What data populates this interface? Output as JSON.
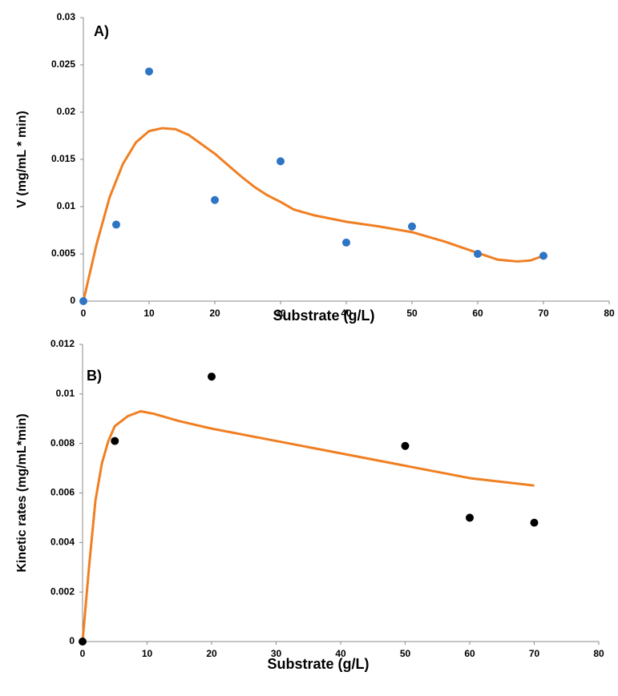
{
  "chart_data": [
    {
      "type": "scatter",
      "title": "A)",
      "x_label": "Substrate (g/L)",
      "y_label": "V (mg/mL * min)",
      "xlim": [
        0,
        80
      ],
      "xticks": [
        0,
        10,
        20,
        30,
        40,
        50,
        60,
        70,
        80
      ],
      "ylim": [
        0,
        0.03
      ],
      "yticks": [
        0,
        0.005,
        0.01,
        0.015,
        0.02,
        0.025,
        0.03
      ],
      "series": [
        {
          "type": "scatter",
          "color": "#2e75c6",
          "x": [
            0,
            5,
            10,
            20,
            30,
            40,
            50,
            60,
            70
          ],
          "values": [
            0,
            0.0081,
            0.0243,
            0.0107,
            0.0148,
            0.0062,
            0.0079,
            0.005,
            0.0048
          ]
        },
        {
          "type": "line",
          "color": "#f07f22",
          "x": [
            0,
            2,
            4,
            6,
            8,
            10,
            12,
            14,
            16,
            18,
            20,
            22,
            24,
            26,
            28,
            30,
            32,
            35,
            40,
            45,
            50,
            55,
            60,
            63,
            66,
            68,
            70
          ],
          "values": [
            0,
            0.006,
            0.011,
            0.0145,
            0.0168,
            0.018,
            0.0183,
            0.0182,
            0.0176,
            0.0166,
            0.0156,
            0.0144,
            0.0132,
            0.0121,
            0.0112,
            0.0105,
            0.0097,
            0.0091,
            0.0084,
            0.0079,
            0.0073,
            0.0063,
            0.0051,
            0.0044,
            0.0042,
            0.0043,
            0.0048
          ]
        }
      ]
    },
    {
      "type": "scatter",
      "title": "B)",
      "x_label": "Substrate (g/L)",
      "y_label": "Kinetic rates (mg/mL*min)",
      "xlim": [
        0,
        80
      ],
      "xticks": [
        0,
        10,
        20,
        30,
        40,
        50,
        60,
        70,
        80
      ],
      "ylim": [
        0,
        0.012
      ],
      "yticks": [
        0,
        0.002,
        0.004,
        0.006,
        0.008,
        0.01,
        0.012
      ],
      "series": [
        {
          "type": "scatter",
          "color": "#000000",
          "x": [
            0,
            5,
            20,
            50,
            60,
            70
          ],
          "values": [
            0,
            0.0081,
            0.0107,
            0.0079,
            0.005,
            0.0048
          ]
        },
        {
          "type": "line",
          "color": "#f07f22",
          "x": [
            0,
            1,
            2,
            3,
            4,
            5,
            7,
            9,
            11,
            15,
            20,
            30,
            40,
            50,
            60,
            70
          ],
          "values": [
            0,
            0.003,
            0.0057,
            0.0072,
            0.0081,
            0.0087,
            0.0091,
            0.0093,
            0.0092,
            0.0089,
            0.0086,
            0.0081,
            0.0076,
            0.0071,
            0.0066,
            0.0063
          ]
        }
      ]
    }
  ]
}
